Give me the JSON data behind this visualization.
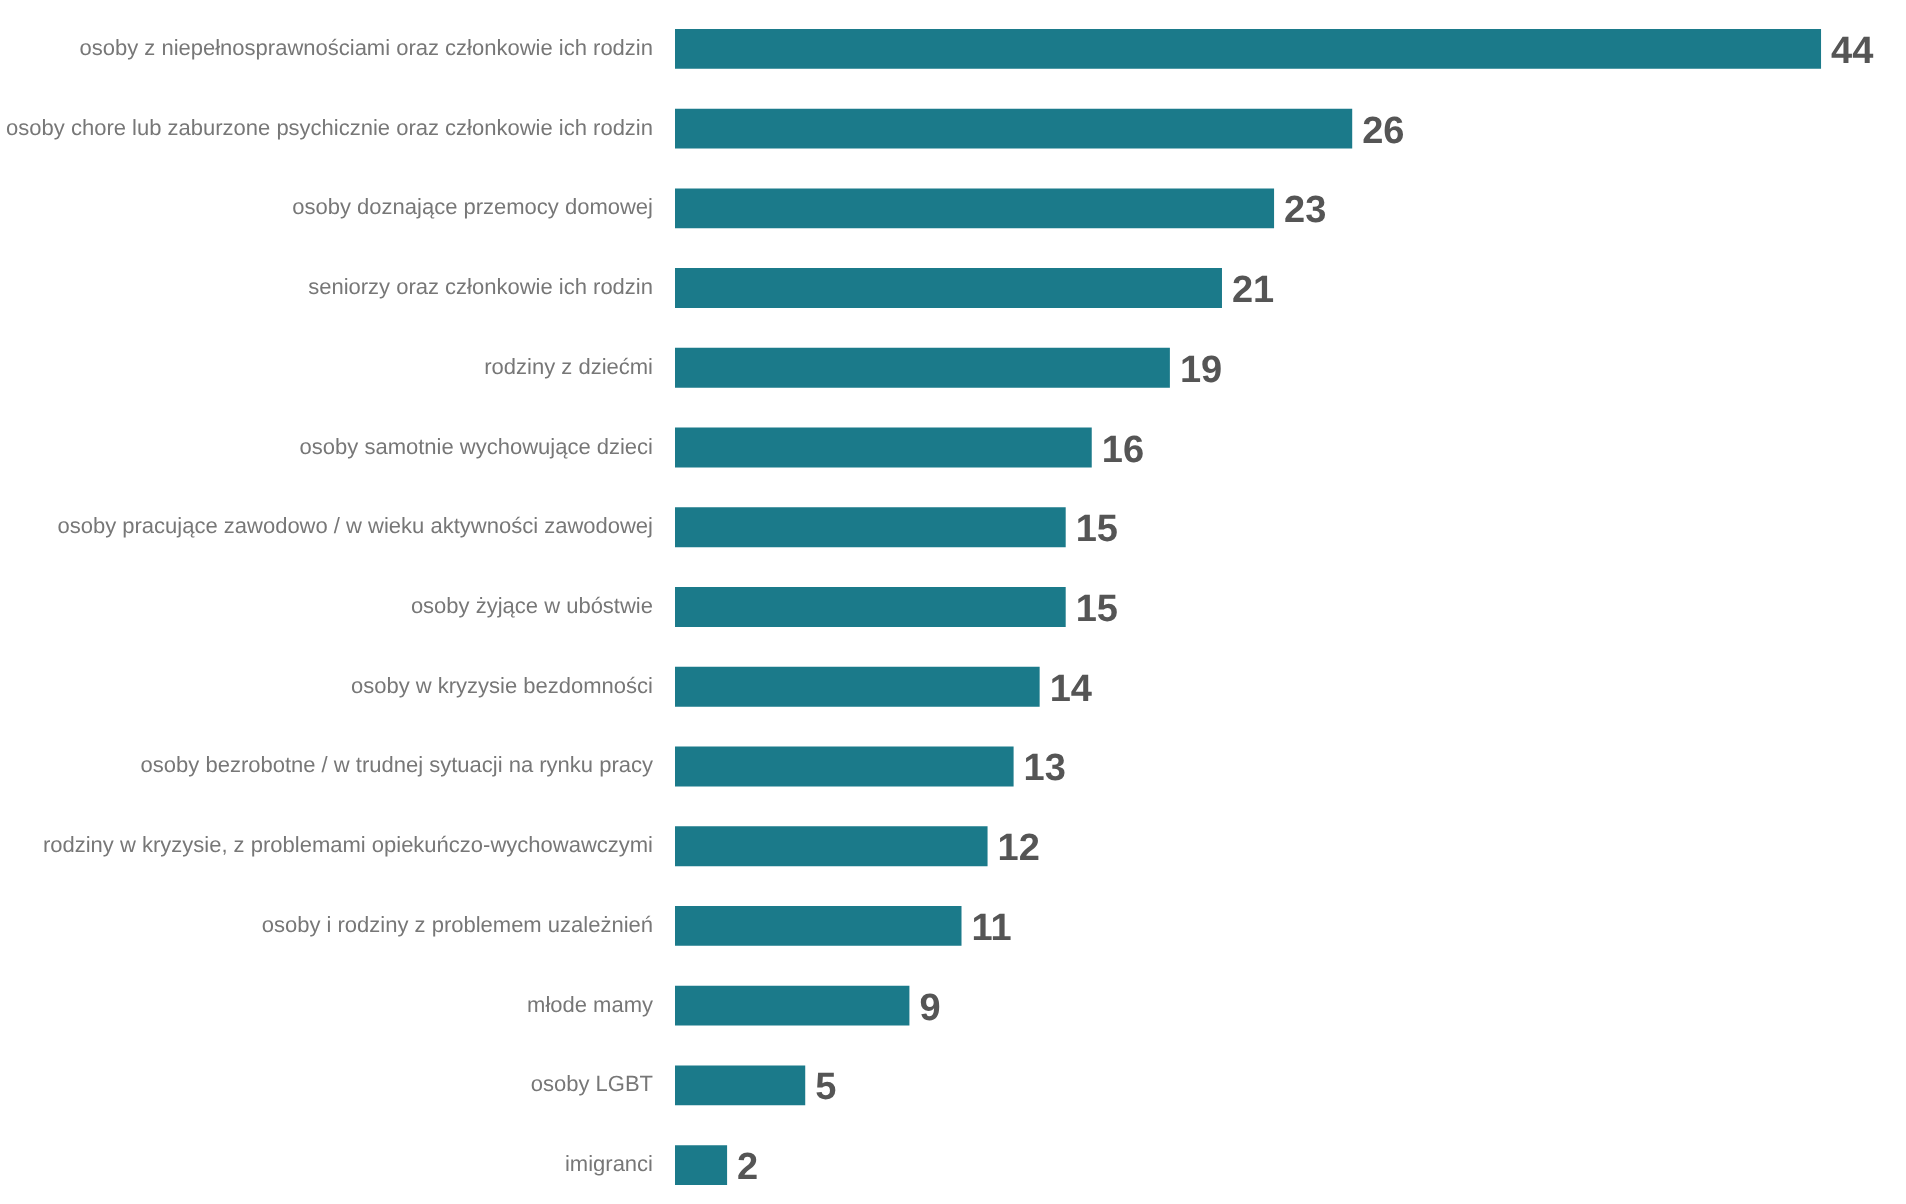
{
  "chart_data": {
    "type": "bar",
    "orientation": "horizontal",
    "categories": [
      "osoby z niepełnosprawnościami oraz członkowie ich rodzin",
      "osoby chore lub zaburzone psychicznie oraz członkowie ich rodzin",
      "osoby doznające przemocy domowej",
      "seniorzy oraz członkowie ich rodzin",
      "rodziny z dziećmi",
      "osoby samotnie wychowujące dzieci",
      "osoby pracujące zawodowo / w wieku aktywności zawodowej",
      "osoby żyjące w ubóstwie",
      "osoby w kryzysie bezdomności",
      "osoby bezrobotne / w trudnej sytuacji na rynku pracy",
      "rodziny w kryzysie, z problemami opiekuńczo-wychowawczymi",
      "osoby i rodziny z problemem uzależnień",
      "młode mamy",
      "osoby LGBT",
      "imigranci"
    ],
    "values": [
      44,
      26,
      23,
      21,
      19,
      16,
      15,
      15,
      14,
      13,
      12,
      11,
      9,
      5,
      2
    ],
    "color": "#1b7a8a",
    "data_labels": true
  }
}
